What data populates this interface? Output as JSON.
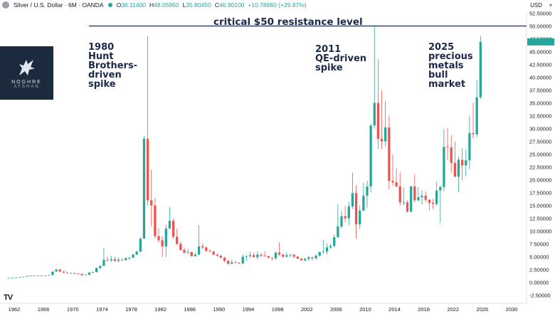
{
  "header": {
    "symbol": "Silver / U.S. Dollar · 6M · OANDA",
    "o_label": "O",
    "o": "36.11400",
    "h_label": "H",
    "h": "48.05950",
    "l_label": "L",
    "l": "35.80450",
    "c_label": "C",
    "c": "46.90100",
    "change": "+10.78660 (+29.87%)"
  },
  "currency": "USD",
  "logo": {
    "line1": "NOGHRE",
    "line2": "AFSHAN"
  },
  "annotations": {
    "resistance": "critical $50 resistance level",
    "a1980": [
      "1980",
      "Hunt",
      "Brothers-",
      "driven",
      "spike"
    ],
    "a2011": [
      "2011",
      "QE-driven",
      "spike"
    ],
    "a2025": [
      "2025",
      "precious",
      "metals",
      "bull",
      "market"
    ]
  },
  "tv_logo": "TV",
  "colors": {
    "up": "#26a69a",
    "down": "#ef5350",
    "line": "#1b2a4a"
  },
  "chart_data": {
    "type": "candlestick",
    "title": "Silver / U.S. Dollar · 6M · OANDA",
    "x_ticks": [
      "1962",
      "1966",
      "1970",
      "1974",
      "1978",
      "1982",
      "1986",
      "1990",
      "1994",
      "1998",
      "2002",
      "2006",
      "2010",
      "2014",
      "2018",
      "2022",
      "2026",
      "2030"
    ],
    "y_ticks": [
      "52.50000",
      "50.00000",
      "47.50000",
      "45.00000",
      "42.50000",
      "40.00000",
      "37.50000",
      "35.00000",
      "32.50000",
      "30.00000",
      "27.50000",
      "25.00000",
      "22.50000",
      "20.00000",
      "17.50000",
      "15.00000",
      "12.50000",
      "10.00000",
      "7.50000",
      "5.00000",
      "2.50000",
      "0.00000",
      "-2.50000"
    ],
    "ylim": [
      -2.5,
      53.5
    ],
    "xlim": [
      1961.5,
      2031
    ],
    "resistance_level": 50,
    "candles": [
      [
        1961,
        0.9,
        0.9,
        0.9,
        0.9
      ],
      [
        1961.5,
        0.9,
        0.92,
        0.9,
        0.92
      ],
      [
        1962,
        0.92,
        0.95,
        0.92,
        0.95
      ],
      [
        1962.5,
        0.95,
        1.0,
        0.95,
        1.0
      ],
      [
        1963,
        1.0,
        1.1,
        1.0,
        1.1
      ],
      [
        1963.5,
        1.1,
        1.25,
        1.1,
        1.25
      ],
      [
        1964,
        1.25,
        1.29,
        1.25,
        1.29
      ],
      [
        1964.5,
        1.29,
        1.29,
        1.29,
        1.29
      ],
      [
        1965,
        1.29,
        1.29,
        1.29,
        1.29
      ],
      [
        1965.5,
        1.29,
        1.29,
        1.29,
        1.29
      ],
      [
        1966,
        1.29,
        1.29,
        1.29,
        1.29
      ],
      [
        1966.5,
        1.29,
        1.4,
        1.29,
        1.4
      ],
      [
        1967,
        1.4,
        2.1,
        1.4,
        2.1
      ],
      [
        1967.5,
        2.1,
        2.6,
        2.0,
        2.5
      ],
      [
        1968,
        2.5,
        2.6,
        2.0,
        2.1
      ],
      [
        1968.5,
        2.1,
        2.2,
        1.8,
        1.9
      ],
      [
        1969,
        1.9,
        2.0,
        1.7,
        1.8
      ],
      [
        1969.5,
        1.8,
        1.9,
        1.75,
        1.8
      ],
      [
        1970,
        1.8,
        1.9,
        1.6,
        1.7
      ],
      [
        1970.5,
        1.7,
        1.8,
        1.55,
        1.65
      ],
      [
        1971,
        1.65,
        1.7,
        1.3,
        1.4
      ],
      [
        1971.5,
        1.4,
        1.6,
        1.35,
        1.5
      ],
      [
        1972,
        1.5,
        2.0,
        1.4,
        1.9
      ],
      [
        1972.5,
        1.9,
        2.1,
        1.8,
        2.0
      ],
      [
        1973,
        2.0,
        2.9,
        1.9,
        2.8
      ],
      [
        1973.5,
        2.8,
        3.3,
        2.5,
        3.2
      ],
      [
        1974,
        3.2,
        6.7,
        3.2,
        4.4
      ],
      [
        1974.5,
        4.4,
        5.0,
        4.0,
        4.3
      ],
      [
        1975,
        4.3,
        5.2,
        4.0,
        4.5
      ],
      [
        1975.5,
        4.5,
        5.0,
        4.1,
        4.2
      ],
      [
        1976,
        4.2,
        4.8,
        3.9,
        4.4
      ],
      [
        1976.5,
        4.4,
        4.7,
        4.2,
        4.3
      ],
      [
        1977,
        4.3,
        4.9,
        4.3,
        4.7
      ],
      [
        1977.5,
        4.7,
        4.9,
        4.3,
        4.8
      ],
      [
        1978,
        4.8,
        5.6,
        4.8,
        5.4
      ],
      [
        1978.5,
        5.4,
        6.2,
        5.3,
        6.0
      ],
      [
        1979,
        6.0,
        8.8,
        5.8,
        8.5
      ],
      [
        1979.5,
        8.5,
        28.5,
        8.5,
        28.0
      ],
      [
        1980,
        28.0,
        48.0,
        15.0,
        16.0
      ],
      [
        1980.5,
        16.0,
        22.0,
        11.0,
        15.0
      ],
      [
        1981,
        15.0,
        16.5,
        8.5,
        9.0
      ],
      [
        1981.5,
        9.0,
        10.5,
        7.8,
        8.2
      ],
      [
        1982,
        8.2,
        9.0,
        4.9,
        7.0
      ],
      [
        1982.5,
        7.0,
        11.2,
        4.9,
        10.5
      ],
      [
        1983,
        10.5,
        14.7,
        10.5,
        12.0
      ],
      [
        1983.5,
        12.0,
        12.5,
        8.5,
        8.9
      ],
      [
        1984,
        8.9,
        10.5,
        7.3,
        7.5
      ],
      [
        1984.5,
        7.5,
        8.0,
        6.2,
        6.3
      ],
      [
        1985,
        6.3,
        6.8,
        5.5,
        5.8
      ],
      [
        1985.5,
        5.8,
        6.5,
        5.5,
        5.9
      ],
      [
        1986,
        5.9,
        6.0,
        5.0,
        5.1
      ],
      [
        1986.5,
        5.1,
        5.8,
        5.0,
        5.4
      ],
      [
        1987,
        5.4,
        11.2,
        5.4,
        7.0
      ],
      [
        1987.5,
        7.0,
        7.6,
        6.5,
        6.8
      ],
      [
        1988,
        6.8,
        7.0,
        6.0,
        6.1
      ],
      [
        1988.5,
        6.1,
        6.5,
        5.9,
        6.0
      ],
      [
        1989,
        6.0,
        6.2,
        5.3,
        5.4
      ],
      [
        1989.5,
        5.4,
        5.6,
        5.0,
        5.2
      ],
      [
        1990,
        5.2,
        5.3,
        4.7,
        4.8
      ],
      [
        1990.5,
        4.8,
        5.0,
        3.9,
        4.2
      ],
      [
        1991,
        4.2,
        4.3,
        3.5,
        3.6
      ],
      [
        1991.5,
        3.6,
        4.5,
        3.6,
        3.9
      ],
      [
        1992,
        3.9,
        4.2,
        3.7,
        3.8
      ],
      [
        1992.5,
        3.8,
        4.0,
        3.6,
        3.7
      ],
      [
        1993,
        3.7,
        5.5,
        3.5,
        5.0
      ],
      [
        1993.5,
        5.0,
        5.3,
        4.2,
        5.1
      ],
      [
        1994,
        5.1,
        6.0,
        4.8,
        5.3
      ],
      [
        1994.5,
        5.3,
        5.8,
        4.9,
        4.9
      ],
      [
        1995,
        4.9,
        6.0,
        4.5,
        5.4
      ],
      [
        1995.5,
        5.4,
        5.6,
        4.9,
        5.2
      ],
      [
        1996,
        5.2,
        6.0,
        5.0,
        5.1
      ],
      [
        1996.5,
        5.1,
        5.2,
        4.6,
        4.8
      ],
      [
        1997,
        4.8,
        4.9,
        4.3,
        4.7
      ],
      [
        1997.5,
        4.7,
        6.0,
        4.4,
        5.8
      ],
      [
        1998,
        5.8,
        7.8,
        5.2,
        5.4
      ],
      [
        1998.5,
        5.4,
        5.6,
        4.8,
        5.0
      ],
      [
        1999,
        5.0,
        5.8,
        4.9,
        5.3
      ],
      [
        1999.5,
        5.3,
        5.5,
        4.9,
        5.4
      ],
      [
        2000,
        5.4,
        5.5,
        4.7,
        5.0
      ],
      [
        2000.5,
        5.0,
        5.1,
        4.6,
        4.6
      ],
      [
        2001,
        4.6,
        4.8,
        4.2,
        4.3
      ],
      [
        2001.5,
        4.3,
        4.7,
        4.1,
        4.6
      ],
      [
        2002,
        4.6,
        5.1,
        4.2,
        4.9
      ],
      [
        2002.5,
        4.9,
        4.9,
        4.3,
        4.7
      ],
      [
        2003,
        4.7,
        5.5,
        4.4,
        5.2
      ],
      [
        2003.5,
        5.2,
        6.0,
        5.0,
        5.9
      ],
      [
        2004,
        5.9,
        8.3,
        5.5,
        6.0
      ],
      [
        2004.5,
        6.0,
        7.6,
        5.5,
        6.8
      ],
      [
        2005,
        6.8,
        7.5,
        6.5,
        7.1
      ],
      [
        2005.5,
        7.1,
        9.3,
        6.8,
        8.8
      ],
      [
        2006,
        8.8,
        15.2,
        8.7,
        10.9
      ],
      [
        2006.5,
        10.9,
        13.9,
        10.5,
        12.9
      ],
      [
        2007,
        12.9,
        14.9,
        11.7,
        12.5
      ],
      [
        2007.5,
        12.5,
        15.7,
        11.2,
        14.8
      ],
      [
        2008,
        14.8,
        21.4,
        14.3,
        17.4
      ],
      [
        2008.5,
        17.4,
        19.0,
        8.5,
        11.3
      ],
      [
        2009,
        11.3,
        15.0,
        10.4,
        14.0
      ],
      [
        2009.5,
        14.0,
        19.4,
        13.9,
        16.9
      ],
      [
        2010,
        16.9,
        19.8,
        14.6,
        18.7
      ],
      [
        2010.5,
        18.7,
        31.0,
        17.5,
        30.6
      ],
      [
        2011,
        30.6,
        50.0,
        30.0,
        35.0
      ],
      [
        2011.5,
        35.0,
        43.5,
        26.0,
        28.0
      ],
      [
        2012,
        28.0,
        37.5,
        26.0,
        27.5
      ],
      [
        2012.5,
        27.5,
        35.4,
        26.5,
        30.2
      ],
      [
        2013,
        30.2,
        32.5,
        18.2,
        19.8
      ],
      [
        2013.5,
        19.8,
        25.0,
        18.8,
        19.5
      ],
      [
        2014,
        19.5,
        22.2,
        18.6,
        18.7
      ],
      [
        2014.5,
        18.7,
        21.4,
        15.0,
        15.6
      ],
      [
        2015,
        15.6,
        18.5,
        15.0,
        15.6
      ],
      [
        2015.5,
        15.6,
        16.0,
        13.6,
        13.8
      ],
      [
        2016,
        13.8,
        18.8,
        13.6,
        18.7
      ],
      [
        2016.5,
        18.7,
        21.1,
        15.6,
        16.0
      ],
      [
        2017,
        16.0,
        18.6,
        15.8,
        16.6
      ],
      [
        2017.5,
        16.6,
        18.0,
        15.2,
        16.9
      ],
      [
        2018,
        16.9,
        17.7,
        15.7,
        16.1
      ],
      [
        2018.5,
        16.1,
        16.2,
        13.9,
        15.5
      ],
      [
        2019,
        15.5,
        16.3,
        14.3,
        15.3
      ],
      [
        2019.5,
        15.3,
        19.6,
        14.9,
        17.9
      ],
      [
        2020,
        17.9,
        18.9,
        11.6,
        18.6
      ],
      [
        2020.5,
        18.6,
        29.9,
        17.8,
        26.4
      ],
      [
        2021,
        26.4,
        30.1,
        23.8,
        26.3
      ],
      [
        2021.5,
        26.3,
        28.7,
        21.4,
        23.3
      ],
      [
        2022,
        23.3,
        27.5,
        20.5,
        20.6
      ],
      [
        2022.5,
        20.6,
        24.5,
        17.6,
        23.9
      ],
      [
        2023,
        23.9,
        26.1,
        19.9,
        22.8
      ],
      [
        2023.5,
        22.8,
        25.9,
        20.7,
        23.8
      ],
      [
        2024,
        23.8,
        32.5,
        22.1,
        29.1
      ],
      [
        2024.5,
        29.1,
        35.0,
        28.0,
        28.9
      ],
      [
        2025,
        28.9,
        39.5,
        28.3,
        36.1
      ],
      [
        2025.5,
        36.11,
        48.06,
        35.8,
        46.9
      ]
    ]
  }
}
